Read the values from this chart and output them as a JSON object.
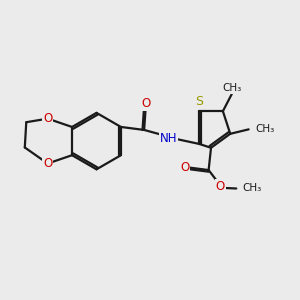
{
  "bg_color": "#ebebeb",
  "bond_color": "#1a1a1a",
  "oxygen_color": "#cc0000",
  "nitrogen_color": "#0000cc",
  "sulfur_color": "#999900",
  "line_width": 1.6,
  "dbo": 0.055,
  "xlim": [
    0,
    10
  ],
  "ylim": [
    0,
    10
  ]
}
